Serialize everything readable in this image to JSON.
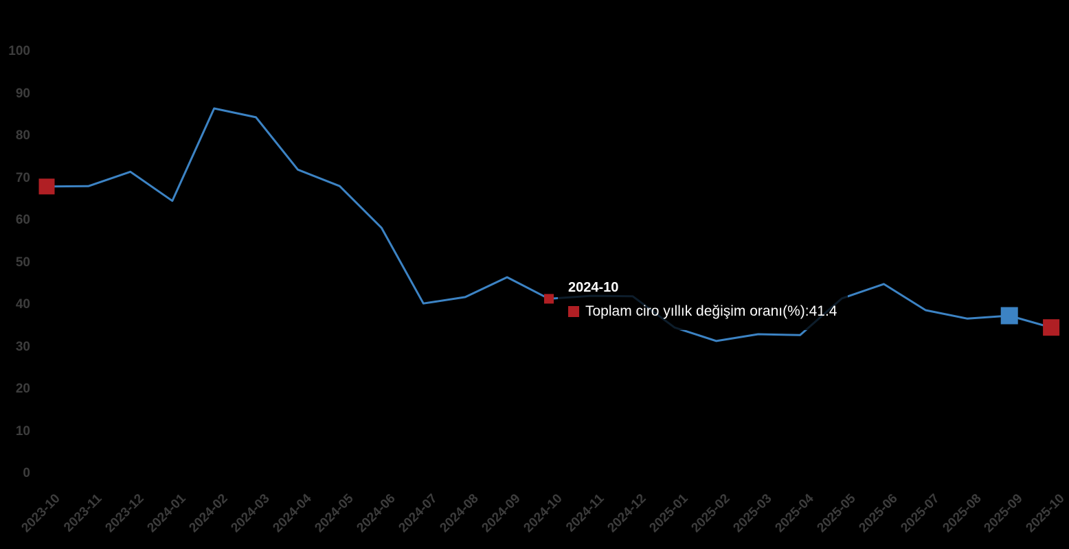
{
  "window": {
    "background": "#000000"
  },
  "chart_data": {
    "type": "line",
    "title": "",
    "xlabel": "",
    "ylabel": "",
    "x": [
      "2023-10",
      "2023-11",
      "2023-12",
      "2024-01",
      "2024-02",
      "2024-03",
      "2024-04",
      "2024-05",
      "2024-06",
      "2024-07",
      "2024-08",
      "2024-09",
      "2024-10",
      "2024-11",
      "2024-12",
      "2025-01",
      "2025-02",
      "2025-03",
      "2025-04",
      "2025-05",
      "2025-06",
      "2025-07",
      "2025-08",
      "2025-09",
      "2025-10"
    ],
    "series": [
      {
        "name": "Toplam ciro yıllık değişim oranı(%)",
        "color": "#3c83c4",
        "values": [
          68.0,
          68.1,
          71.5,
          64.6,
          86.5,
          84.4,
          72.0,
          68.1,
          58.2,
          40.3,
          41.8,
          46.5,
          41.4,
          42.1,
          42.0,
          34.6,
          31.4,
          33.0,
          32.8,
          41.5,
          44.9,
          38.7,
          36.7,
          37.4,
          34.6
        ]
      }
    ],
    "ylim": [
      0,
      100
    ],
    "yticks": [
      0,
      10,
      20,
      30,
      40,
      50,
      60,
      70,
      80,
      90,
      100
    ],
    "grid": false,
    "legend_position": "none",
    "axis_label_color": "#3d3d3d",
    "markers": [
      {
        "category": "2023-10",
        "index": 0,
        "shape": "square",
        "color": "#b01f24",
        "size": 23
      },
      {
        "category": "2024-10",
        "index": 12,
        "shape": "square",
        "color": "#b01f24",
        "size": 14
      },
      {
        "category": "2025-09",
        "index": 23,
        "shape": "square",
        "color": "#3c83c4",
        "size": 25
      },
      {
        "category": "2025-10",
        "index": 24,
        "shape": "square",
        "color": "#b01f24",
        "size": 24
      }
    ]
  },
  "tooltip": {
    "title": "2024-10",
    "label": "Toplam ciro yıllık değişim oranı(%)",
    "separator": ": ",
    "value": "41.4",
    "marker_color": "#b01f24"
  }
}
